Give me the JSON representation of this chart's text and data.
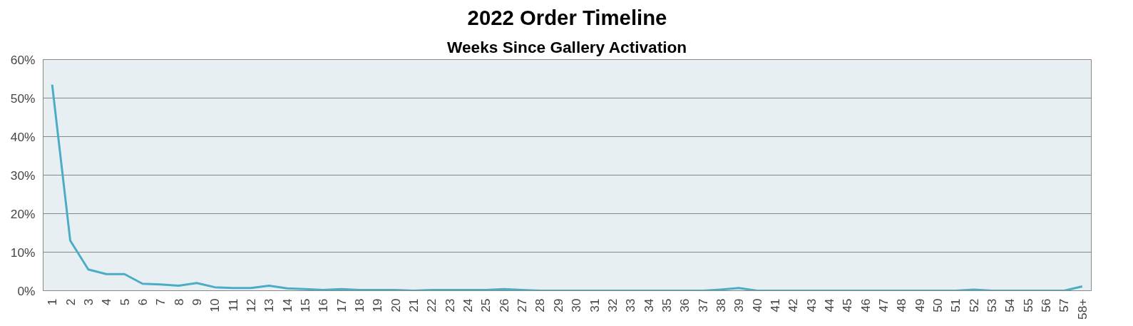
{
  "chart_data": {
    "type": "line",
    "title": "2022 Order Timeline",
    "subtitle": "Weeks Since Gallery Activation",
    "categories": [
      "1",
      "2",
      "3",
      "4",
      "5",
      "6",
      "7",
      "8",
      "9",
      "10",
      "11",
      "12",
      "13",
      "14",
      "15",
      "16",
      "17",
      "18",
      "19",
      "20",
      "21",
      "22",
      "23",
      "24",
      "25",
      "26",
      "27",
      "28",
      "29",
      "30",
      "31",
      "32",
      "33",
      "34",
      "35",
      "36",
      "37",
      "38",
      "39",
      "40",
      "41",
      "42",
      "43",
      "44",
      "45",
      "46",
      "47",
      "48",
      "49",
      "50",
      "51",
      "52",
      "53",
      "54",
      "55",
      "56",
      "57",
      "58+"
    ],
    "series": [
      {
        "color": "#4bacc6",
        "values": [
          53.5,
          13,
          5.5,
          4.3,
          4.3,
          1.8,
          1.6,
          1.3,
          2.0,
          0.9,
          0.7,
          0.7,
          1.3,
          0.6,
          0.4,
          0.2,
          0.4,
          0.2,
          0.2,
          0.2,
          0,
          0.2,
          0.2,
          0.2,
          0.2,
          0.4,
          0.2,
          0,
          0,
          0,
          0,
          0,
          0,
          0,
          0,
          0,
          0,
          0.3,
          0.7,
          0,
          0,
          0,
          0,
          0,
          0,
          0,
          0,
          0,
          0,
          0,
          0,
          0.3,
          0,
          0,
          0,
          0,
          0,
          1.1
        ]
      }
    ],
    "ylim": [
      0,
      60
    ],
    "yticks": [
      {
        "value": 0,
        "label": "0%"
      },
      {
        "value": 10,
        "label": "10%"
      },
      {
        "value": 20,
        "label": "20%"
      },
      {
        "value": 30,
        "label": "30%"
      },
      {
        "value": 40,
        "label": "40%"
      },
      {
        "value": 50,
        "label": "50%"
      },
      {
        "value": 60,
        "label": "60%"
      }
    ],
    "grid": "y",
    "marker": "none",
    "line_style": "solid"
  }
}
